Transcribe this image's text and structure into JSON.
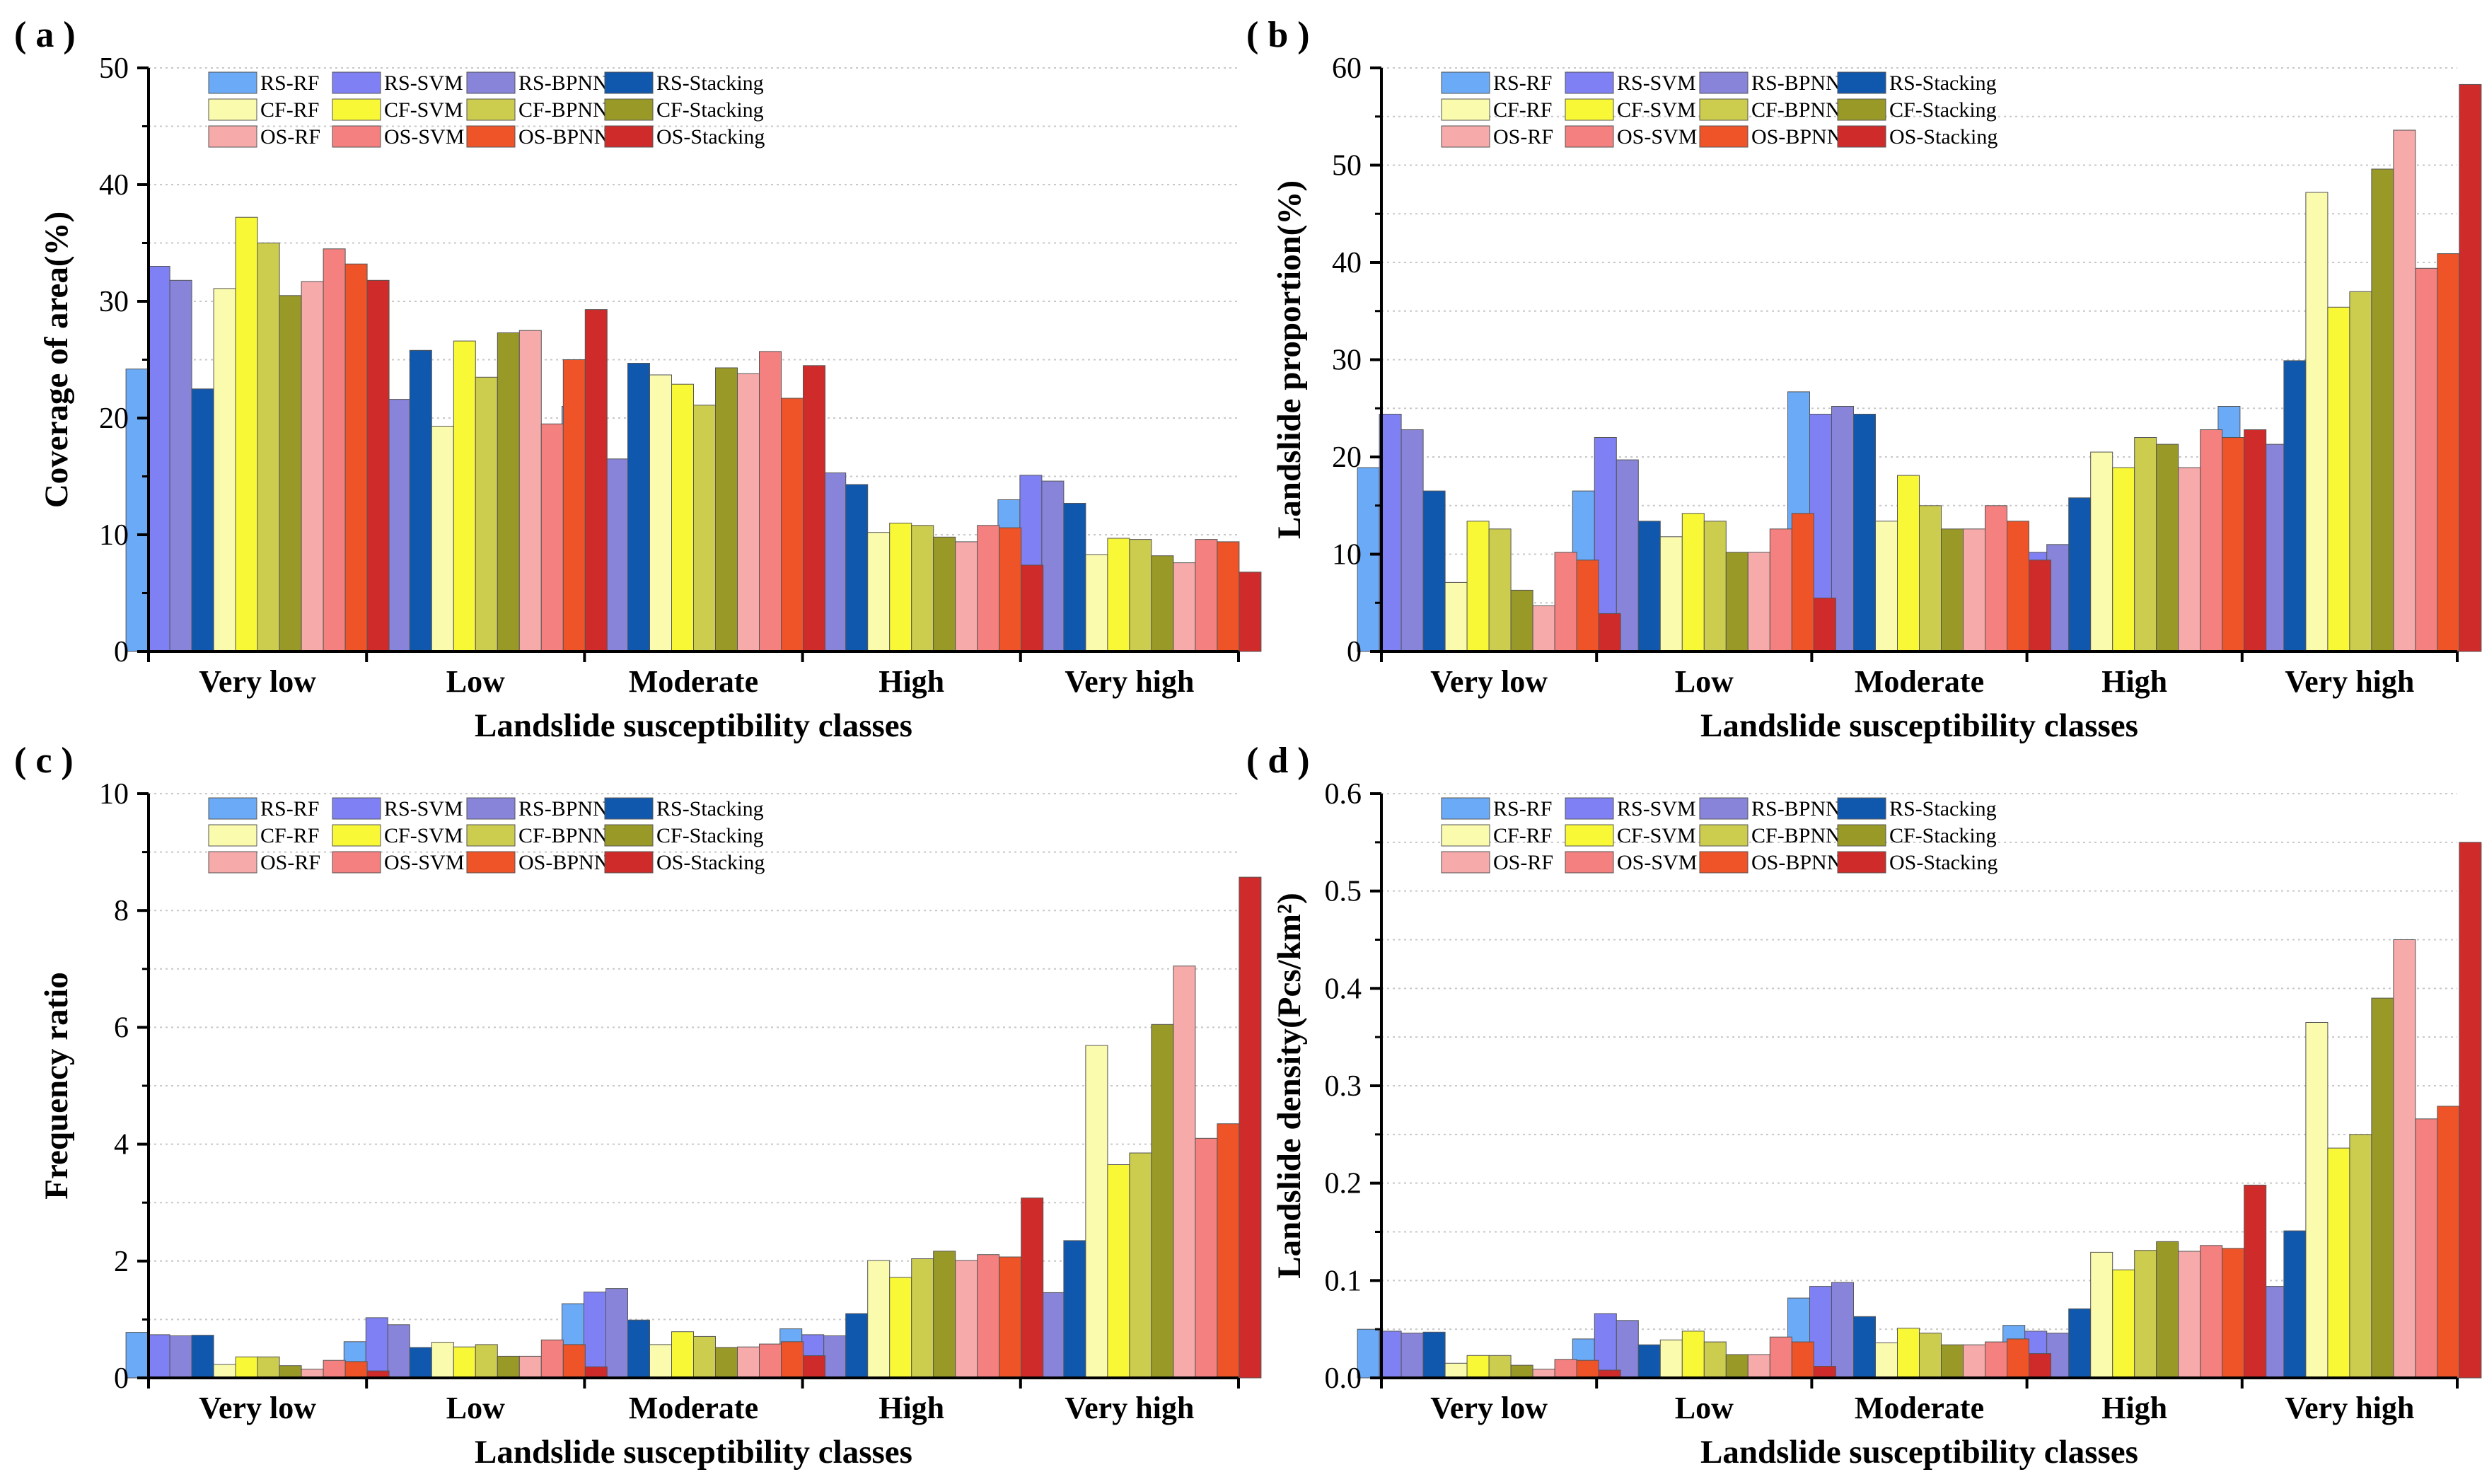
{
  "legend_labels": [
    "RS-RF",
    "RS-SVM",
    "RS-BPNN",
    "RS-Stacking",
    "CF-RF",
    "CF-SVM",
    "CF-BPNN",
    "CF-Stacking",
    "OS-RF",
    "OS-SVM",
    "OS-BPNN",
    "OS-Stacking"
  ],
  "colors": {
    "RS-RF": "#6aaaf6",
    "RS-SVM": "#8080f5",
    "RS-BPNN": "#8784da",
    "RS-Stacking": "#0f58ad",
    "CF-RF": "#fbfbae",
    "CF-SVM": "#f8f837",
    "CF-BPNN": "#cccc4f",
    "CF-Stacking": "#999928",
    "OS-RF": "#f7aaaa",
    "OS-SVM": "#f48080",
    "OS-BPNN": "#ee5428",
    "OS-Stacking": "#cf2b2b"
  },
  "chart_data": [
    {
      "panel": "(a)",
      "type": "bar",
      "title": "",
      "xlabel": "Landslide susceptibility classes",
      "ylabel": "Coverage of area(%)",
      "ylim": [
        0,
        50
      ],
      "yticks": [
        0,
        10,
        20,
        30,
        40,
        50
      ],
      "grid": true,
      "legend": "top-left",
      "categories": [
        "Very low",
        "Low",
        "Moderate",
        "High",
        "Very high"
      ],
      "series": [
        {
          "name": "RS-RF",
          "values": [
            24.2,
            26.6,
            21.0,
            15.1,
            13.0
          ]
        },
        {
          "name": "RS-SVM",
          "values": [
            33.0,
            21.4,
            16.6,
            13.9,
            15.1
          ]
        },
        {
          "name": "RS-BPNN",
          "values": [
            31.8,
            21.6,
            16.5,
            15.3,
            14.6
          ]
        },
        {
          "name": "RS-Stacking",
          "values": [
            22.5,
            25.8,
            24.7,
            14.3,
            12.7
          ]
        },
        {
          "name": "CF-RF",
          "values": [
            31.1,
            19.3,
            23.7,
            10.2,
            8.3
          ]
        },
        {
          "name": "CF-SVM",
          "values": [
            37.2,
            26.6,
            22.9,
            11.0,
            9.7
          ]
        },
        {
          "name": "CF-BPNN",
          "values": [
            35.0,
            23.5,
            21.1,
            10.8,
            9.6
          ]
        },
        {
          "name": "CF-Stacking",
          "values": [
            30.5,
            27.3,
            24.3,
            9.8,
            8.2
          ]
        },
        {
          "name": "OS-RF",
          "values": [
            31.7,
            27.5,
            23.8,
            9.4,
            7.6
          ]
        },
        {
          "name": "OS-SVM",
          "values": [
            34.5,
            19.5,
            25.7,
            10.8,
            9.6
          ]
        },
        {
          "name": "OS-BPNN",
          "values": [
            33.2,
            25.0,
            21.7,
            10.6,
            9.4
          ]
        },
        {
          "name": "OS-Stacking",
          "values": [
            31.8,
            29.3,
            24.5,
            7.4,
            6.8
          ]
        }
      ]
    },
    {
      "panel": "(b)",
      "type": "bar",
      "title": "",
      "xlabel": "Landslide susceptibility classes",
      "ylabel": "Landslide proportion(%)",
      "ylim": [
        0,
        60
      ],
      "yticks": [
        0,
        10,
        20,
        30,
        40,
        50,
        60
      ],
      "grid": true,
      "legend": "top-left",
      "categories": [
        "Very low",
        "Low",
        "Moderate",
        "High",
        "Very high"
      ],
      "series": [
        {
          "name": "RS-RF",
          "values": [
            18.9,
            16.5,
            26.7,
            12.6,
            25.2
          ]
        },
        {
          "name": "RS-SVM",
          "values": [
            24.4,
            22.0,
            24.4,
            10.2,
            18.9
          ]
        },
        {
          "name": "RS-BPNN",
          "values": [
            22.8,
            19.7,
            25.2,
            11.0,
            21.3
          ]
        },
        {
          "name": "RS-Stacking",
          "values": [
            16.5,
            13.4,
            24.4,
            15.8,
            29.9
          ]
        },
        {
          "name": "CF-RF",
          "values": [
            7.1,
            11.8,
            13.4,
            20.5,
            47.2
          ]
        },
        {
          "name": "CF-SVM",
          "values": [
            13.4,
            14.2,
            18.1,
            18.9,
            35.4
          ]
        },
        {
          "name": "CF-BPNN",
          "values": [
            12.6,
            13.4,
            15.0,
            22.0,
            37.0
          ]
        },
        {
          "name": "CF-Stacking",
          "values": [
            6.3,
            10.2,
            12.6,
            21.3,
            49.6
          ]
        },
        {
          "name": "OS-RF",
          "values": [
            4.7,
            10.2,
            12.6,
            18.9,
            53.6
          ]
        },
        {
          "name": "OS-SVM",
          "values": [
            10.2,
            12.6,
            15.0,
            22.8,
            39.4
          ]
        },
        {
          "name": "OS-BPNN",
          "values": [
            9.4,
            14.2,
            13.4,
            22.0,
            40.9
          ]
        },
        {
          "name": "OS-Stacking",
          "values": [
            3.9,
            5.5,
            9.4,
            22.8,
            58.3
          ]
        }
      ]
    },
    {
      "panel": "(c)",
      "type": "bar",
      "title": "",
      "xlabel": "Landslide susceptibility classes",
      "ylabel": "Frequency ratio",
      "ylim": [
        0,
        10
      ],
      "yticks": [
        0,
        2,
        4,
        6,
        8,
        10
      ],
      "grid": true,
      "legend": "top-left",
      "categories": [
        "Very low",
        "Low",
        "Moderate",
        "High",
        "Very high"
      ],
      "series": [
        {
          "name": "RS-RF",
          "values": [
            0.78,
            0.62,
            1.27,
            0.84,
            1.94
          ]
        },
        {
          "name": "RS-SVM",
          "values": [
            0.74,
            1.03,
            1.47,
            0.74,
            1.25
          ]
        },
        {
          "name": "RS-BPNN",
          "values": [
            0.72,
            0.91,
            1.53,
            0.72,
            1.46
          ]
        },
        {
          "name": "RS-Stacking",
          "values": [
            0.73,
            0.52,
            0.99,
            1.1,
            2.35
          ]
        },
        {
          "name": "CF-RF",
          "values": [
            0.23,
            0.61,
            0.57,
            2.01,
            5.69
          ]
        },
        {
          "name": "CF-SVM",
          "values": [
            0.36,
            0.53,
            0.79,
            1.72,
            3.65
          ]
        },
        {
          "name": "CF-BPNN",
          "values": [
            0.36,
            0.57,
            0.71,
            2.04,
            3.85
          ]
        },
        {
          "name": "CF-Stacking",
          "values": [
            0.21,
            0.37,
            0.52,
            2.17,
            6.05
          ]
        },
        {
          "name": "OS-RF",
          "values": [
            0.15,
            0.37,
            0.53,
            2.01,
            7.05
          ]
        },
        {
          "name": "OS-SVM",
          "values": [
            0.3,
            0.65,
            0.58,
            2.11,
            4.1
          ]
        },
        {
          "name": "OS-BPNN",
          "values": [
            0.28,
            0.57,
            0.62,
            2.07,
            4.35
          ]
        },
        {
          "name": "OS-Stacking",
          "values": [
            0.12,
            0.19,
            0.38,
            3.08,
            8.57
          ]
        }
      ]
    },
    {
      "panel": "(d)",
      "type": "bar",
      "title": "",
      "xlabel": "Landslide susceptibility classes",
      "ylabel": "Landslide density(Pcs/km²)",
      "ylim": [
        0,
        0.6
      ],
      "yticks": [
        0.0,
        0.1,
        0.2,
        0.3,
        0.4,
        0.5,
        0.6
      ],
      "grid": true,
      "legend": "top-left",
      "categories": [
        "Very low",
        "Low",
        "Moderate",
        "High",
        "Very high"
      ],
      "series": [
        {
          "name": "RS-RF",
          "values": [
            0.05,
            0.04,
            0.082,
            0.054,
            0.124
          ]
        },
        {
          "name": "RS-SVM",
          "values": [
            0.048,
            0.066,
            0.094,
            0.048,
            0.081
          ]
        },
        {
          "name": "RS-BPNN",
          "values": [
            0.046,
            0.059,
            0.098,
            0.046,
            0.094
          ]
        },
        {
          "name": "RS-Stacking",
          "values": [
            0.047,
            0.034,
            0.063,
            0.071,
            0.151
          ]
        },
        {
          "name": "CF-RF",
          "values": [
            0.015,
            0.039,
            0.036,
            0.129,
            0.365
          ]
        },
        {
          "name": "CF-SVM",
          "values": [
            0.023,
            0.048,
            0.051,
            0.111,
            0.236
          ]
        },
        {
          "name": "CF-BPNN",
          "values": [
            0.023,
            0.037,
            0.046,
            0.131,
            0.25
          ]
        },
        {
          "name": "CF-Stacking",
          "values": [
            0.013,
            0.024,
            0.034,
            0.14,
            0.39
          ]
        },
        {
          "name": "OS-RF",
          "values": [
            0.009,
            0.024,
            0.034,
            0.13,
            0.45
          ]
        },
        {
          "name": "OS-SVM",
          "values": [
            0.019,
            0.042,
            0.037,
            0.136,
            0.266
          ]
        },
        {
          "name": "OS-BPNN",
          "values": [
            0.018,
            0.037,
            0.04,
            0.133,
            0.279
          ]
        },
        {
          "name": "OS-Stacking",
          "values": [
            0.008,
            0.012,
            0.025,
            0.198,
            0.55
          ]
        }
      ]
    }
  ]
}
